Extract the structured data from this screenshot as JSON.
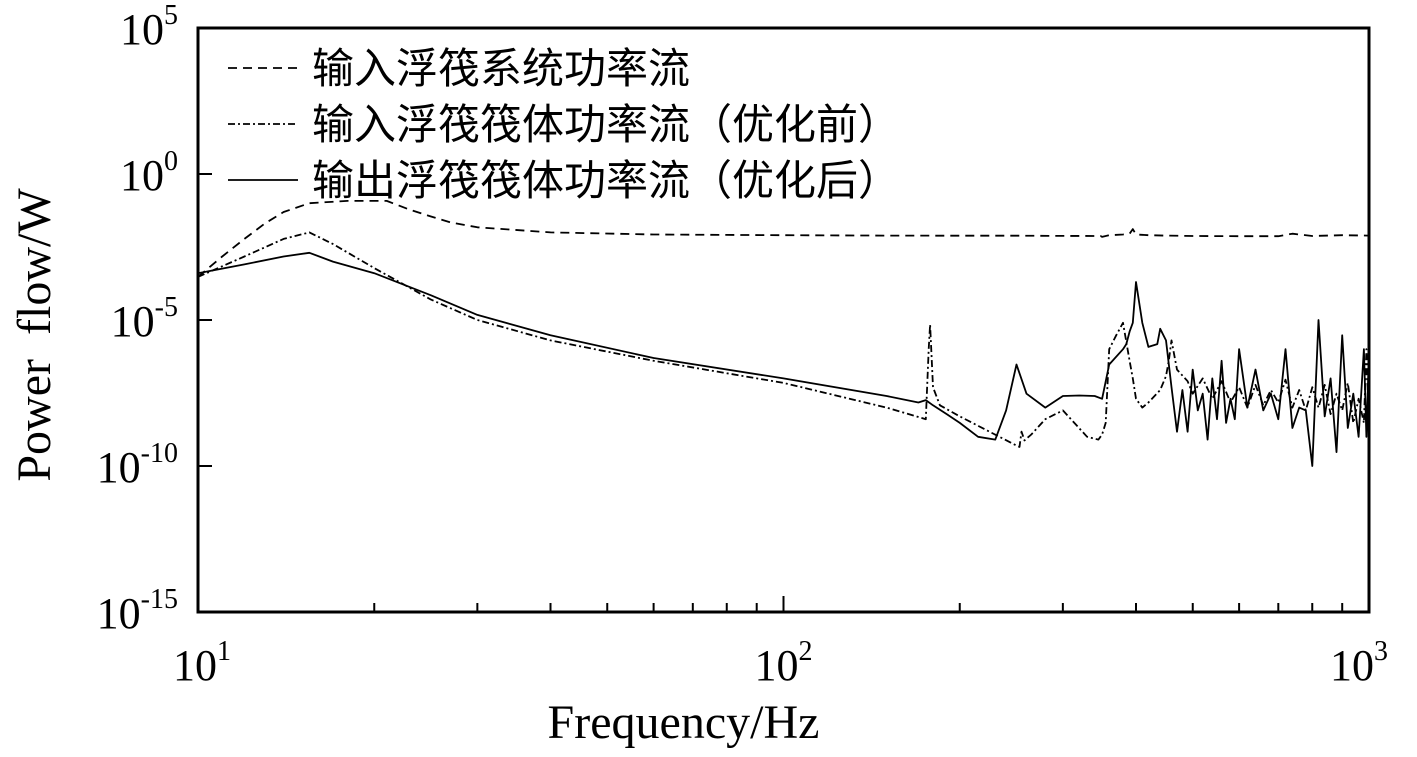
{
  "chart_data": {
    "type": "line",
    "xlabel": "Frequency/Hz",
    "ylabel": "Power  flow/W",
    "xscale": "log",
    "yscale": "log",
    "xlim": [
      10,
      1000
    ],
    "ylim": [
      1e-15,
      100000
    ],
    "grid": false,
    "legend_position": "top-left",
    "x_ticks": [
      {
        "value": 10,
        "base": "10",
        "exp": "1"
      },
      {
        "value": 100,
        "base": "10",
        "exp": "2"
      },
      {
        "value": 1000,
        "base": "10",
        "exp": "3"
      }
    ],
    "y_ticks": [
      {
        "value": 100000,
        "base": "10",
        "exp": "5"
      },
      {
        "value": 1,
        "base": "10",
        "exp": "0"
      },
      {
        "value": 1e-05,
        "base": "10",
        "exp": "-5"
      },
      {
        "value": 1e-10,
        "base": "10",
        "exp": "-10"
      },
      {
        "value": 1e-15,
        "base": "10",
        "exp": "-15"
      }
    ],
    "series": [
      {
        "name": "输入浮筏系统功率流",
        "style": "dashed",
        "x": [
          10,
          11,
          12,
          13,
          14,
          15.5,
          18,
          21,
          23,
          25,
          27,
          30,
          40,
          60,
          100,
          150,
          200,
          250,
          300,
          348,
          350,
          360,
          380,
          390,
          395,
          400,
          420,
          450,
          500,
          600,
          700,
          740,
          800,
          900,
          1000
        ],
        "y": [
          0.0003,
          0.0015,
          0.006,
          0.02,
          0.05,
          0.1,
          0.12,
          0.12,
          0.06,
          0.035,
          0.022,
          0.015,
          0.01,
          0.0085,
          0.008,
          0.0078,
          0.0077,
          0.0077,
          0.0076,
          0.0075,
          0.007,
          0.008,
          0.0085,
          0.009,
          0.013,
          0.0085,
          0.008,
          0.0078,
          0.0075,
          0.0074,
          0.0074,
          0.009,
          0.0075,
          0.008,
          0.0078
        ]
      },
      {
        "name": "输入浮筏筏体功率流（优化前）",
        "style": "dash-dot",
        "x": [
          10,
          12,
          14,
          15.5,
          17,
          20,
          25,
          30,
          40,
          60,
          100,
          150,
          175,
          177,
          178,
          180,
          185,
          200,
          250,
          253,
          255,
          258,
          265,
          280,
          300,
          330,
          345,
          350,
          355,
          360,
          370,
          380,
          390,
          395,
          400,
          410,
          420,
          440,
          450,
          455,
          460,
          470,
          490,
          500,
          520,
          540,
          560,
          580,
          600,
          620,
          640,
          660,
          680,
          700,
          720,
          740,
          760,
          780,
          800,
          820,
          840,
          860,
          880,
          900,
          920,
          940,
          960,
          980,
          990,
          1000
        ],
        "y": [
          0.0003,
          0.0015,
          0.006,
          0.01,
          0.004,
          0.0006,
          5e-05,
          1e-05,
          2e-06,
          4e-07,
          7e-08,
          1e-08,
          4e-09,
          1e-06,
          7e-06,
          5e-08,
          1.2e-08,
          5e-09,
          5e-10,
          4.5e-10,
          1.5e-09,
          7.5e-10,
          1.2e-09,
          4e-09,
          8e-09,
          1e-09,
          8e-10,
          1.2e-09,
          3e-09,
          1e-06,
          3e-06,
          8e-06,
          4e-07,
          1e-07,
          2e-08,
          1e-08,
          1.5e-08,
          4e-08,
          1.2e-07,
          4e-07,
          2e-06,
          2e-07,
          8e-08,
          3e-08,
          1e-07,
          2e-08,
          8e-08,
          1.5e-08,
          5e-08,
          1e-08,
          6e-08,
          1.2e-08,
          4e-08,
          1.5e-08,
          9e-08,
          1e-08,
          4e-08,
          8e-09,
          5e-08,
          1e-08,
          6e-08,
          6e-09,
          3e-08,
          8e-09,
          7e-08,
          3e-09,
          2e-08,
          3e-09,
          1e-06,
          1.5e-09
        ]
      },
      {
        "name": "输出浮筏筏体功率流（优化后）",
        "style": "solid",
        "x": [
          10,
          12,
          14,
          15.5,
          17,
          20,
          25,
          30,
          40,
          60,
          100,
          150,
          170,
          175,
          180,
          190,
          200,
          215,
          230,
          240,
          250,
          260,
          280,
          300,
          320,
          340,
          350,
          360,
          380,
          385,
          390,
          395,
          400,
          410,
          420,
          435,
          440,
          450,
          460,
          470,
          480,
          490,
          500,
          510,
          520,
          530,
          540,
          550,
          560,
          570,
          580,
          590,
          600,
          620,
          640,
          660,
          680,
          700,
          720,
          740,
          760,
          780,
          800,
          820,
          840,
          860,
          880,
          900,
          920,
          940,
          960,
          980,
          990,
          1000
        ],
        "y": [
          0.0004,
          0.0008,
          0.0015,
          0.002,
          0.001,
          0.0004,
          7e-05,
          1.5e-05,
          3e-06,
          5e-07,
          1e-07,
          2.5e-08,
          1.5e-08,
          1.8e-08,
          1.2e-08,
          6e-09,
          3e-09,
          1e-09,
          8e-10,
          8e-09,
          3e-07,
          3e-08,
          1e-08,
          2.5e-08,
          2.6e-08,
          2.5e-08,
          2e-08,
          3e-07,
          1e-06,
          1.5e-06,
          4e-06,
          8e-06,
          0.0002,
          8e-06,
          1.2e-06,
          1.5e-06,
          5e-06,
          2e-06,
          5e-08,
          1.5e-09,
          4e-08,
          1.5e-09,
          2e-07,
          8e-09,
          3e-08,
          8e-10,
          1e-07,
          4e-09,
          4e-07,
          3e-09,
          2e-08,
          4e-09,
          1e-06,
          1e-08,
          2e-07,
          8e-09,
          3e-08,
          4e-09,
          1e-06,
          2e-09,
          1e-08,
          8e-09,
          1e-10,
          1e-05,
          5e-09,
          1e-07,
          3e-10,
          3e-06,
          2e-09,
          3e-08,
          1e-09,
          1e-06,
          1e-09,
          1e-06
        ]
      }
    ]
  }
}
